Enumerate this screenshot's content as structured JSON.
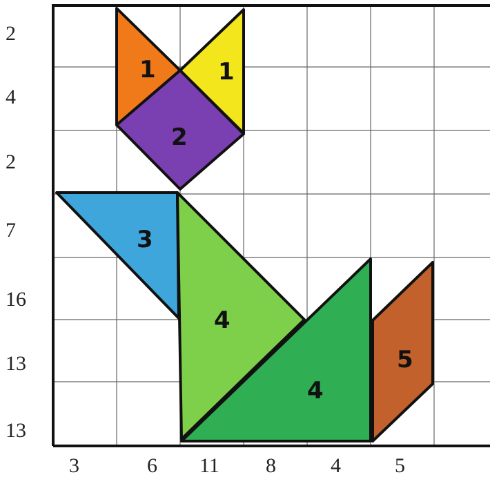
{
  "row_labels": [
    "2",
    "4",
    "2",
    "7",
    "16",
    "13",
    "13"
  ],
  "col_labels": [
    "3",
    "6",
    "11",
    "8",
    "4",
    "5"
  ],
  "pieces": [
    {
      "id": "orange-triangle",
      "label": "1",
      "color": "#f07a1a"
    },
    {
      "id": "yellow-triangle",
      "label": "1",
      "color": "#f3e61c"
    },
    {
      "id": "purple-square",
      "label": "2",
      "color": "#7a3fb0"
    },
    {
      "id": "blue-triangle",
      "label": "3",
      "color": "#3fa6dc"
    },
    {
      "id": "light-green-triangle",
      "label": "4",
      "color": "#7ed04a"
    },
    {
      "id": "dark-green-triangle",
      "label": "4",
      "color": "#2fae54"
    },
    {
      "id": "brown-parallelogram",
      "label": "5",
      "color": "#c2612c"
    }
  ],
  "colors": {
    "grid": "#555555",
    "outline": "#111111",
    "background": "#ffffff"
  }
}
